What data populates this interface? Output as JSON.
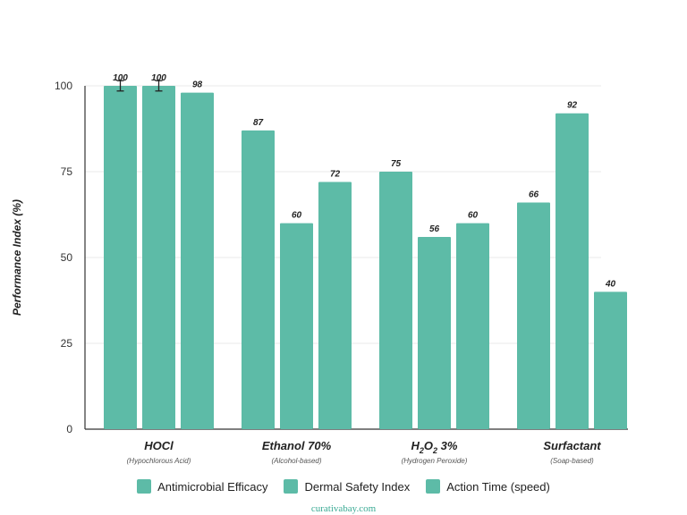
{
  "colors": {
    "bar": "#5dbba7",
    "bar_edge": "#52ab98",
    "axis": "#333333",
    "grid": "#e8e8e8",
    "label": "#222222",
    "footer": "#3aaa94"
  },
  "chart_data": {
    "type": "bar",
    "ylabel": "Performance Index (%)",
    "ylim": [
      0,
      100
    ],
    "yticks": [
      0,
      25,
      50,
      75,
      100
    ],
    "grid": true,
    "legend_position": "bottom",
    "categories": [
      {
        "label": "HOCl",
        "sublabel": "(Hypochlorous Acid)"
      },
      {
        "label": "Ethanol 70%",
        "sublabel": "(Alcohol-based)"
      },
      {
        "label_parts": [
          "H",
          "2",
          "O",
          "2",
          " 3%"
        ],
        "label": "H2O2 3%",
        "sublabel": "(Hydrogen Peroxide)"
      },
      {
        "label": "Surfactant",
        "sublabel": "(Soap-based)"
      }
    ],
    "series": [
      {
        "name": "Antimicrobial Efficacy",
        "values": [
          100,
          87,
          75,
          66
        ],
        "error": [
          1.5,
          null,
          null,
          null
        ]
      },
      {
        "name": "Dermal Safety Index",
        "values": [
          100,
          60,
          56,
          92
        ],
        "error": [
          1.5,
          null,
          null,
          null
        ]
      },
      {
        "name": "Action Time (speed)",
        "values": [
          98,
          72,
          60,
          40
        ],
        "error": [
          null,
          null,
          null,
          null
        ]
      }
    ]
  },
  "footer": {
    "text": "curativabay.com"
  }
}
